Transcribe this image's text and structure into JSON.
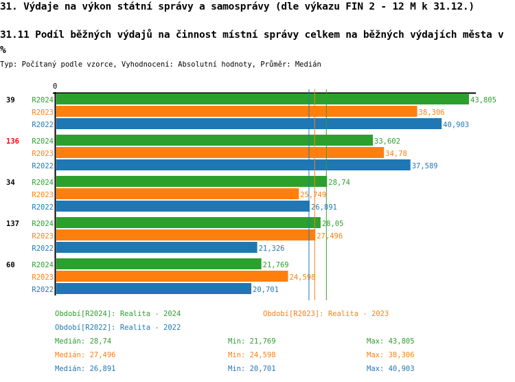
{
  "title": "31. Výdaje na výkon státní správy a samosprávy (dle výkazu FIN 2 - 12 M k 31.12.)",
  "subtitle": "31.11 Podíl běžných výdajů na činnost místní správy celkem na běžných výdajích města v %",
  "info": "Typ: Počítaný podle vzorce, Vyhodnocení: Absolutní hodnoty, Průměr: Medián",
  "colors": {
    "R2024": "#2ca02c",
    "R2023": "#ff7f0e",
    "R2022": "#1f77b4",
    "highlight": "#ff0000"
  },
  "chart_data": {
    "type": "bar",
    "orientation": "horizontal",
    "axis_tick": "0",
    "xlim": [
      0,
      43.805
    ],
    "categories": [
      "39",
      "136",
      "34",
      "137",
      "60"
    ],
    "highlighted_category": "136",
    "series": [
      {
        "name": "R2024",
        "values": [
          43.805,
          33.602,
          28.74,
          28.05,
          21.769
        ],
        "labels": [
          "43,805",
          "33,602",
          "28,74",
          "28,05",
          "21,769"
        ],
        "median": 28.74
      },
      {
        "name": "R2023",
        "values": [
          38.306,
          34.78,
          25.749,
          27.496,
          24.598
        ],
        "labels": [
          "38,306",
          "34,78",
          "25,749",
          "27,496",
          "24,598"
        ],
        "median": 27.496
      },
      {
        "name": "R2022",
        "values": [
          40.903,
          37.589,
          26.891,
          21.326,
          20.701
        ],
        "labels": [
          "40,903",
          "37,589",
          "26,891",
          "21,326",
          "20,701"
        ],
        "median": 26.891
      }
    ]
  },
  "legend": {
    "r2024": "Období[R2024]: Realita - 2024",
    "r2023": "Období[R2023]: Realita - 2023",
    "r2022": "Období[R2022]: Realita - 2022"
  },
  "stats": {
    "r2024": {
      "median": "Medián: 28,74",
      "min": "Min: 21,769",
      "max": "Max: 43,805"
    },
    "r2023": {
      "median": "Medián: 27,496",
      "min": "Min: 24,598",
      "max": "Max: 38,306"
    },
    "r2022": {
      "median": "Medián: 26,891",
      "min": "Min: 20,701",
      "max": "Max: 40,903"
    }
  }
}
